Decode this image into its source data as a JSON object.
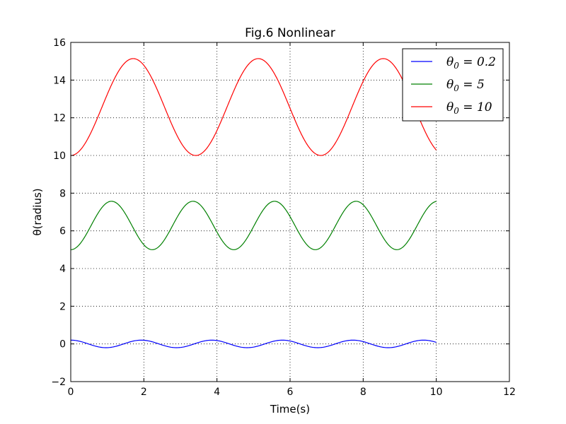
{
  "chart_data": {
    "type": "line",
    "title": "Fig.6 Nonlinear",
    "xlabel": "Time(s)",
    "ylabel": "θ(radius)",
    "xlim": [
      0,
      12
    ],
    "ylim": [
      -2,
      16
    ],
    "xticks": [
      0,
      2,
      4,
      6,
      8,
      10,
      12
    ],
    "yticks": [
      -2,
      0,
      2,
      4,
      6,
      8,
      10,
      12,
      14,
      16
    ],
    "x_range": [
      0,
      10
    ],
    "grid": true,
    "legend_position": "top-right",
    "series": [
      {
        "name": "θ0 = 0.2",
        "name_symbol": "θ",
        "name_sub": "0",
        "name_rest": " = 0.2",
        "color": "#0000ff",
        "theta0": 0.2,
        "amplitude": 0.2,
        "offset": 0.0,
        "period": 1.93,
        "waveform": "cosine"
      },
      {
        "name": "θ0 = 5",
        "name_symbol": "θ",
        "name_sub": "0",
        "name_rest": " = 5",
        "color": "#008000",
        "theta0": 5,
        "min": 5.0,
        "max": 7.57,
        "period": 2.23,
        "waveform": "oscillation"
      },
      {
        "name": "θ0 = 10",
        "name_symbol": "θ",
        "name_sub": "0",
        "name_rest": " = 10",
        "color": "#ff0000",
        "theta0": 10,
        "min": 10.0,
        "max": 15.14,
        "period": 3.42,
        "waveform": "oscillation"
      }
    ]
  }
}
